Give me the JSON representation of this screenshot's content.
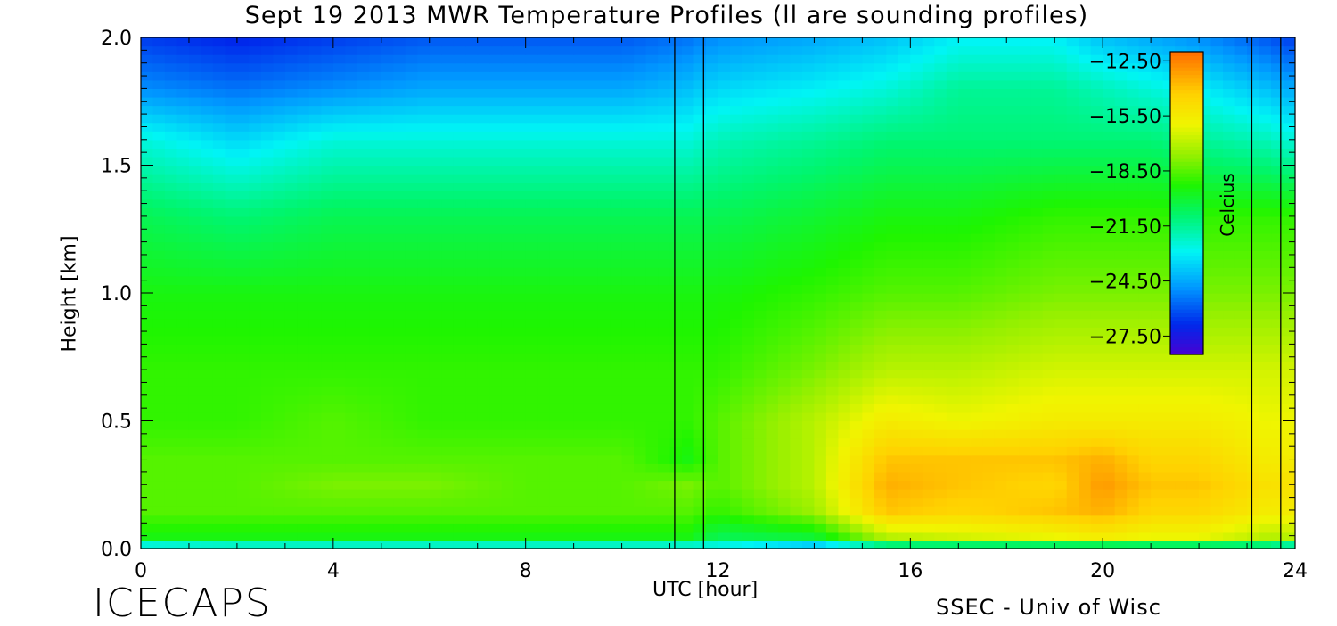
{
  "title": "Sept 19 2013 MWR Temperature Profiles (ll are sounding profiles)",
  "logo": "ICECAPS",
  "credit": "SSEC - Univ of Wisc",
  "chart_data": {
    "type": "heatmap",
    "title": "Sept 19 2013 MWR Temperature Profiles (ll are sounding profiles)",
    "xlabel": "UTC [hour]",
    "ylabel": "Height [km]",
    "xlim": [
      0,
      24
    ],
    "ylim": [
      0,
      2.0
    ],
    "xticks": [
      0,
      4,
      8,
      12,
      16,
      20,
      24
    ],
    "yticks": [
      0.0,
      0.5,
      1.0,
      1.5,
      2.0
    ],
    "ytick_labels": [
      "0.0",
      "0.5",
      "1.0",
      "1.5",
      "2.0"
    ],
    "colorbar": {
      "label": "Celcius",
      "min": -28.5,
      "max": -12.0,
      "ticks": [
        -12.5,
        -15.5,
        -18.5,
        -21.5,
        -24.5,
        -27.5
      ],
      "tick_labels": [
        "−12.50",
        "−15.50",
        "−18.50",
        "−21.50",
        "−24.50",
        "−27.50"
      ]
    },
    "sounding_times": [
      11.1,
      11.7,
      23.1,
      23.7
    ],
    "heights": [
      0.0,
      0.05,
      0.15,
      0.25,
      0.35,
      0.5,
      0.7,
      1.0,
      1.3,
      1.6,
      1.8,
      2.0
    ],
    "times": [
      0,
      2,
      4,
      6,
      8,
      10,
      11.4,
      12,
      14,
      15.5,
      17,
      19,
      20,
      21,
      22,
      23.4,
      24
    ],
    "temperature": [
      [
        -24,
        -23.5,
        -23.5,
        -23.5,
        -23.5,
        -23.5,
        -23.5,
        -23.5,
        -25.5,
        -23,
        -23,
        -23,
        -23,
        -23,
        -23,
        -23,
        -24
      ],
      [
        -19.5,
        -19.5,
        -19.5,
        -19.5,
        -19.5,
        -19.5,
        -19.5,
        -20.5,
        -20,
        -17,
        -16.5,
        -16,
        -15.5,
        -16,
        -16,
        -17,
        -17
      ],
      [
        -18.5,
        -18.5,
        -18.5,
        -18.5,
        -18.5,
        -18.5,
        -18.5,
        -19,
        -17.5,
        -14,
        -14.5,
        -14,
        -13.5,
        -14.5,
        -14.5,
        -15.5,
        -15.5
      ],
      [
        -18.5,
        -18.5,
        -18,
        -18,
        -18.5,
        -18.5,
        -18,
        -18.5,
        -17,
        -13.5,
        -14,
        -14.5,
        -13,
        -14,
        -14,
        -15,
        -15
      ],
      [
        -18.5,
        -18.5,
        -18.5,
        -18.5,
        -18.5,
        -18.5,
        -19.5,
        -18.5,
        -17,
        -14,
        -14,
        -14,
        -13.5,
        -14.5,
        -14.5,
        -15.5,
        -15.5
      ],
      [
        -19,
        -19,
        -18.5,
        -19,
        -19,
        -19,
        -19,
        -18.5,
        -17,
        -15.5,
        -16,
        -15.5,
        -15.5,
        -15.5,
        -15.5,
        -16,
        -16
      ],
      [
        -19,
        -19,
        -19,
        -19,
        -19,
        -19,
        -19,
        -19,
        -18,
        -17,
        -17,
        -16.5,
        -16.5,
        -16.5,
        -16.5,
        -16.5,
        -16.5
      ],
      [
        -19.5,
        -19.5,
        -19.5,
        -19.5,
        -19.5,
        -19.5,
        -19.5,
        -19.5,
        -19,
        -18.5,
        -18.5,
        -18,
        -18,
        -18,
        -18,
        -18,
        -18
      ],
      [
        -20.5,
        -21,
        -20.5,
        -20.5,
        -20.5,
        -20.5,
        -20.5,
        -20.5,
        -20,
        -19.5,
        -19.5,
        -19,
        -19,
        -19,
        -19,
        -19,
        -19
      ],
      [
        -22.5,
        -23.5,
        -22.5,
        -22.5,
        -22.5,
        -22.5,
        -22.5,
        -22,
        -21.5,
        -21,
        -21,
        -21,
        -21,
        -21,
        -21.5,
        -22,
        -22.5
      ],
      [
        -25,
        -25.5,
        -25,
        -24.5,
        -24.5,
        -24.5,
        -24,
        -23.5,
        -23,
        -22.5,
        -21.5,
        -21.5,
        -22,
        -22.5,
        -23,
        -24,
        -24.5
      ],
      [
        -26.5,
        -27,
        -26.5,
        -26,
        -26,
        -26,
        -25.5,
        -25,
        -24.5,
        -24,
        -23,
        -23,
        -24,
        -24.5,
        -25,
        -26,
        -26.5
      ]
    ]
  }
}
